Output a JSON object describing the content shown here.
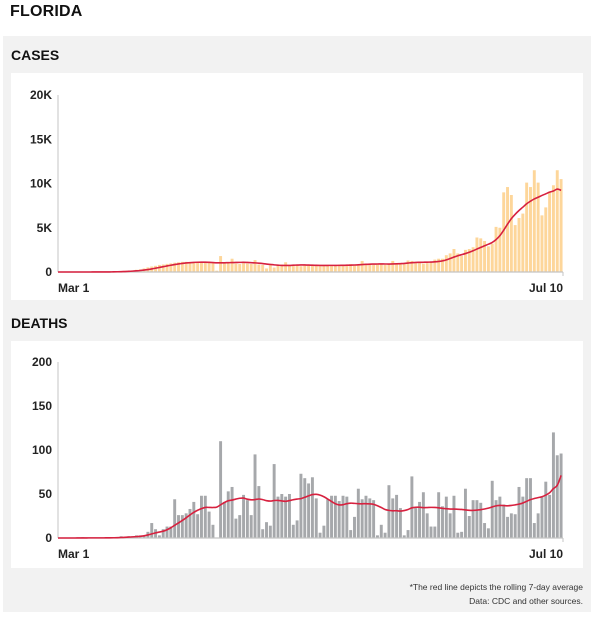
{
  "page": {
    "title": "FLORIDA"
  },
  "sections": {
    "cases": {
      "label": "CASES"
    },
    "deaths": {
      "label": "DEATHS"
    }
  },
  "footer": {
    "note": "*The red line depicts the rolling 7-day average",
    "source": "Data: CDC and other sources."
  },
  "colors": {
    "panel_background": "#f2f2f2",
    "cases_bar": "#fdd69a",
    "deaths_bar": "#a6a8ab",
    "average_line": "#d7213f",
    "axis": "#cfcfcf"
  },
  "chart_data": [
    {
      "type": "bar",
      "title": "CASES",
      "xlabel": "",
      "ylabel": "",
      "x_start": "Mar 1",
      "x_end": "Jul 10",
      "xtick_labels": [
        "Mar 1",
        "Jul 10"
      ],
      "ylim": [
        0,
        20000
      ],
      "yticks": [
        0,
        5000,
        10000,
        15000,
        20000
      ],
      "ytick_labels": [
        "0",
        "5K",
        "10K",
        "15K",
        "20K"
      ],
      "grid": false,
      "bar_color": "#fdd69a",
      "overlay": {
        "type": "line",
        "name": "rolling 7-day average",
        "window": 7,
        "color": "#d7213f"
      },
      "values": [
        0,
        0,
        0,
        0,
        0,
        2,
        2,
        4,
        3,
        4,
        8,
        12,
        20,
        25,
        40,
        55,
        90,
        140,
        120,
        180,
        250,
        300,
        400,
        520,
        620,
        700,
        800,
        850,
        920,
        980,
        1050,
        1100,
        1150,
        1150,
        1100,
        1100,
        1150,
        1050,
        1100,
        1100,
        1050,
        150,
        1800,
        1050,
        1000,
        1500,
        950,
        900,
        1000,
        950,
        900,
        1350,
        850,
        800,
        400,
        750,
        500,
        800,
        850,
        1100,
        700,
        750,
        800,
        650,
        750,
        850,
        700,
        800,
        650,
        750,
        800,
        700,
        750,
        850,
        700,
        800,
        900,
        750,
        800,
        1250,
        900,
        850,
        800,
        950,
        900,
        800,
        850,
        1250,
        900,
        950,
        1000,
        1300,
        1250,
        1100,
        1150,
        950,
        1000,
        1100,
        1400,
        1500,
        1500,
        1900,
        2100,
        2600,
        2100,
        1800,
        2500,
        2600,
        2800,
        3900,
        3800,
        3500,
        2900,
        3200,
        5100,
        5000,
        9000,
        9600,
        8700,
        5300,
        6100,
        6600,
        10100,
        9600,
        11500,
        10100,
        6400,
        7300,
        9000,
        9800,
        11500,
        10500
      ]
    },
    {
      "type": "bar",
      "title": "DEATHS",
      "xlabel": "",
      "ylabel": "",
      "x_start": "Mar 1",
      "x_end": "Jul 10",
      "xtick_labels": [
        "Mar 1",
        "Jul 10"
      ],
      "ylim": [
        0,
        200
      ],
      "yticks": [
        0,
        50,
        100,
        150,
        200
      ],
      "ytick_labels": [
        "0",
        "50",
        "100",
        "150",
        "200"
      ],
      "grid": false,
      "bar_color": "#a6a8ab",
      "overlay": {
        "type": "line",
        "name": "rolling 7-day average",
        "window": 7,
        "color": "#d7213f"
      },
      "values": [
        0,
        0,
        0,
        0,
        0,
        0,
        1,
        0,
        0,
        0,
        0,
        0,
        0,
        1,
        1,
        0,
        2,
        1,
        2,
        2,
        3,
        3,
        2,
        7,
        17,
        10,
        3,
        10,
        13,
        13,
        44,
        26,
        26,
        28,
        33,
        41,
        27,
        48,
        48,
        30,
        15,
        0,
        110,
        41,
        53,
        58,
        22,
        26,
        49,
        43,
        26,
        95,
        59,
        10,
        18,
        14,
        84,
        47,
        50,
        47,
        50,
        15,
        20,
        73,
        68,
        62,
        69,
        45,
        6,
        14,
        44,
        48,
        48,
        42,
        48,
        47,
        9,
        24,
        56,
        44,
        48,
        45,
        43,
        3,
        15,
        6,
        60,
        45,
        49,
        34,
        3,
        9,
        70,
        34,
        41,
        52,
        28,
        13,
        13,
        52,
        36,
        47,
        28,
        48,
        6,
        7,
        56,
        25,
        43,
        43,
        40,
        17,
        11,
        65,
        43,
        47,
        38,
        24,
        28,
        27,
        58,
        47,
        68,
        68,
        17,
        28,
        47,
        64,
        49,
        120,
        94,
        96
      ]
    }
  ]
}
